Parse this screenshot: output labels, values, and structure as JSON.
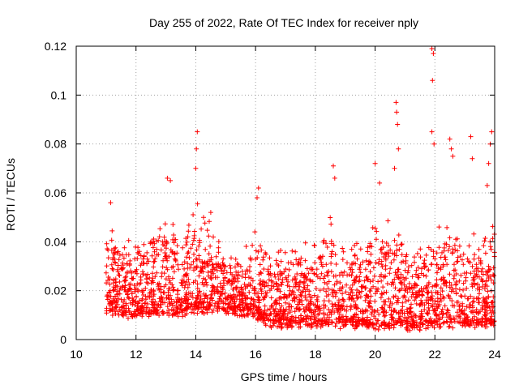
{
  "chart_data": {
    "type": "scatter",
    "title": "Day 255 of 2022, Rate Of TEC Index for receiver nply",
    "xlabel": "GPS time / hours",
    "ylabel": "ROTI / TECUs",
    "xlim": [
      10,
      24
    ],
    "ylim": [
      0,
      0.12
    ],
    "xticks": [
      "10",
      "12",
      "14",
      "16",
      "18",
      "20",
      "22",
      "24"
    ],
    "yticks": [
      "0",
      "0.02",
      "0.04",
      "0.06",
      "0.08",
      "0.1",
      "0.12"
    ],
    "grid": true,
    "marker": "+",
    "series": [
      {
        "name": "ROTI",
        "color": "#ff0000",
        "x_range": [
          11.0,
          24.0
        ],
        "profile": [
          {
            "x": 11.0,
            "base": 0.012,
            "top": 0.052
          },
          {
            "x": 11.5,
            "base": 0.01,
            "top": 0.045
          },
          {
            "x": 12.0,
            "base": 0.01,
            "top": 0.043
          },
          {
            "x": 12.5,
            "base": 0.01,
            "top": 0.046
          },
          {
            "x": 13.0,
            "base": 0.011,
            "top": 0.058
          },
          {
            "x": 13.5,
            "base": 0.01,
            "top": 0.042
          },
          {
            "x": 14.0,
            "base": 0.012,
            "top": 0.06
          },
          {
            "x": 14.5,
            "base": 0.012,
            "top": 0.05
          },
          {
            "x": 15.0,
            "base": 0.012,
            "top": 0.04
          },
          {
            "x": 15.5,
            "base": 0.011,
            "top": 0.035
          },
          {
            "x": 16.0,
            "base": 0.01,
            "top": 0.045
          },
          {
            "x": 16.5,
            "base": 0.006,
            "top": 0.038
          },
          {
            "x": 17.0,
            "base": 0.006,
            "top": 0.04
          },
          {
            "x": 17.5,
            "base": 0.006,
            "top": 0.042
          },
          {
            "x": 18.0,
            "base": 0.006,
            "top": 0.05
          },
          {
            "x": 18.5,
            "base": 0.006,
            "top": 0.055
          },
          {
            "x": 19.0,
            "base": 0.006,
            "top": 0.045
          },
          {
            "x": 19.5,
            "base": 0.006,
            "top": 0.043
          },
          {
            "x": 20.0,
            "base": 0.005,
            "top": 0.055
          },
          {
            "x": 20.5,
            "base": 0.005,
            "top": 0.052
          },
          {
            "x": 21.0,
            "base": 0.005,
            "top": 0.045
          },
          {
            "x": 21.5,
            "base": 0.005,
            "top": 0.04
          },
          {
            "x": 22.0,
            "base": 0.006,
            "top": 0.048
          },
          {
            "x": 22.5,
            "base": 0.006,
            "top": 0.055
          },
          {
            "x": 23.0,
            "base": 0.006,
            "top": 0.045
          },
          {
            "x": 23.5,
            "base": 0.006,
            "top": 0.048
          },
          {
            "x": 24.0,
            "base": 0.006,
            "top": 0.05
          }
        ],
        "spikes": [
          {
            "x": 11.15,
            "y": 0.056
          },
          {
            "x": 13.05,
            "y": 0.066
          },
          {
            "x": 13.15,
            "y": 0.065
          },
          {
            "x": 14.05,
            "y": 0.085
          },
          {
            "x": 14.02,
            "y": 0.078
          },
          {
            "x": 14.0,
            "y": 0.07
          },
          {
            "x": 14.5,
            "y": 0.052
          },
          {
            "x": 16.1,
            "y": 0.062
          },
          {
            "x": 16.05,
            "y": 0.058
          },
          {
            "x": 18.6,
            "y": 0.071
          },
          {
            "x": 18.65,
            "y": 0.066
          },
          {
            "x": 20.0,
            "y": 0.072
          },
          {
            "x": 20.15,
            "y": 0.064
          },
          {
            "x": 20.7,
            "y": 0.097
          },
          {
            "x": 20.72,
            "y": 0.093
          },
          {
            "x": 20.75,
            "y": 0.088
          },
          {
            "x": 20.78,
            "y": 0.078
          },
          {
            "x": 20.65,
            "y": 0.07
          },
          {
            "x": 21.9,
            "y": 0.119
          },
          {
            "x": 21.95,
            "y": 0.117
          },
          {
            "x": 21.92,
            "y": 0.106
          },
          {
            "x": 21.9,
            "y": 0.085
          },
          {
            "x": 21.97,
            "y": 0.08
          },
          {
            "x": 22.5,
            "y": 0.082
          },
          {
            "x": 22.55,
            "y": 0.078
          },
          {
            "x": 22.6,
            "y": 0.075
          },
          {
            "x": 23.2,
            "y": 0.083
          },
          {
            "x": 23.25,
            "y": 0.074
          },
          {
            "x": 23.9,
            "y": 0.085
          },
          {
            "x": 23.85,
            "y": 0.08
          },
          {
            "x": 23.8,
            "y": 0.072
          },
          {
            "x": 23.75,
            "y": 0.063
          }
        ]
      }
    ]
  }
}
